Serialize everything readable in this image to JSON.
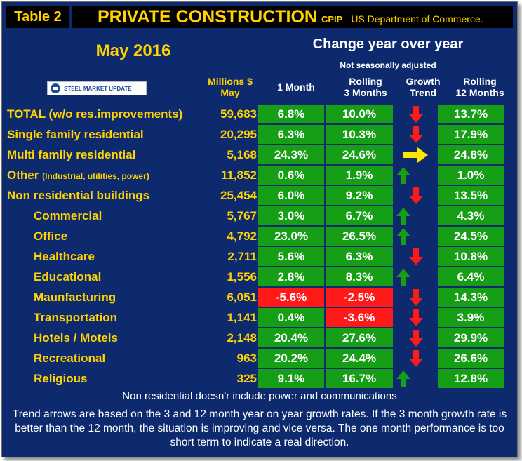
{
  "title": {
    "table_label": "Table 2",
    "main": "PRIVATE CONSTRUCTION",
    "code": "CPIP",
    "source": "US Department of Commerce."
  },
  "period": "May 2016",
  "change_header": "Change year over year",
  "not_seasonally": "Not seasonally adjusted",
  "logo_text": "STEEL MARKET UPDATE",
  "columns": {
    "millions_line1": "Millions $",
    "millions_line2": "May",
    "one_month": "1 Month",
    "rolling3_line1": "Rolling",
    "rolling3_line2": "3 Months",
    "trend_line1": "Growth",
    "trend_line2": "Trend",
    "rolling12_line1": "Rolling",
    "rolling12_line2": "12 Months"
  },
  "rows": [
    {
      "label": "TOTAL (w/o res.improvements)",
      "note": "",
      "value": "59,683",
      "one_month": "6.8%",
      "rolling3": "10.0%",
      "trend": "down",
      "rolling12": "13.7%",
      "indent": false
    },
    {
      "label": "Single family residential",
      "note": "",
      "value": "20,295",
      "one_month": "6.3%",
      "rolling3": "10.3%",
      "trend": "down",
      "rolling12": "17.9%",
      "indent": false
    },
    {
      "label": "Multi family residential",
      "note": "",
      "value": "5,168",
      "one_month": "24.3%",
      "rolling3": "24.6%",
      "trend": "right",
      "rolling12": "24.8%",
      "indent": false
    },
    {
      "label": "Other",
      "note": "(Industrial, utilities, power)",
      "value": "11,852",
      "one_month": "0.6%",
      "rolling3": "1.9%",
      "trend": "up",
      "rolling12": "1.0%",
      "indent": false
    },
    {
      "label": "Non residential buildings",
      "note": "",
      "value": "25,454",
      "one_month": "6.0%",
      "rolling3": "9.2%",
      "trend": "down",
      "rolling12": "13.5%",
      "indent": false
    },
    {
      "label": "Commercial",
      "note": "",
      "value": "5,767",
      "one_month": "3.0%",
      "rolling3": "6.7%",
      "trend": "up",
      "rolling12": "4.3%",
      "indent": true
    },
    {
      "label": "Office",
      "note": "",
      "value": "4,792",
      "one_month": "23.0%",
      "rolling3": "26.5%",
      "trend": "up",
      "rolling12": "24.5%",
      "indent": true
    },
    {
      "label": "Healthcare",
      "note": "",
      "value": "2,711",
      "one_month": "5.6%",
      "rolling3": "6.3%",
      "trend": "down",
      "rolling12": "10.8%",
      "indent": true
    },
    {
      "label": "Educational",
      "note": "",
      "value": "1,556",
      "one_month": "2.8%",
      "rolling3": "8.3%",
      "trend": "up",
      "rolling12": "6.4%",
      "indent": true
    },
    {
      "label": "Maunfacturing",
      "note": "",
      "value": "6,051",
      "one_month": "-5.6%",
      "rolling3": "-2.5%",
      "trend": "down",
      "rolling12": "14.3%",
      "indent": true
    },
    {
      "label": "Transportation",
      "note": "",
      "value": "1,141",
      "one_month": "0.4%",
      "rolling3": "-3.6%",
      "trend": "down",
      "rolling12": "3.9%",
      "indent": true
    },
    {
      "label": "Hotels / Motels",
      "note": "",
      "value": "2,148",
      "one_month": "20.4%",
      "rolling3": "27.6%",
      "trend": "down",
      "rolling12": "29.9%",
      "indent": true
    },
    {
      "label": "Recreational",
      "note": "",
      "value": "963",
      "one_month": "20.2%",
      "rolling3": "24.4%",
      "trend": "down",
      "rolling12": "26.6%",
      "indent": true
    },
    {
      "label": "Religious",
      "note": "",
      "value": "325",
      "one_month": "9.1%",
      "rolling3": "16.7%",
      "trend": "up",
      "rolling12": "12.8%",
      "indent": true
    }
  ],
  "footnote": "Non residential doesn'r include power and communications",
  "explanation": "Trend arrows are based on the 3 and 12 month year on year growth rates. If the 3 month growth rate is better than the 12 month, the situation is improving and vice versa. The one month performance is too short term to indicate a real direction.",
  "colors": {
    "navy": "#0e2a6e",
    "yellow": "#ffd200",
    "green": "#179e17",
    "red": "#ff1a1a"
  }
}
